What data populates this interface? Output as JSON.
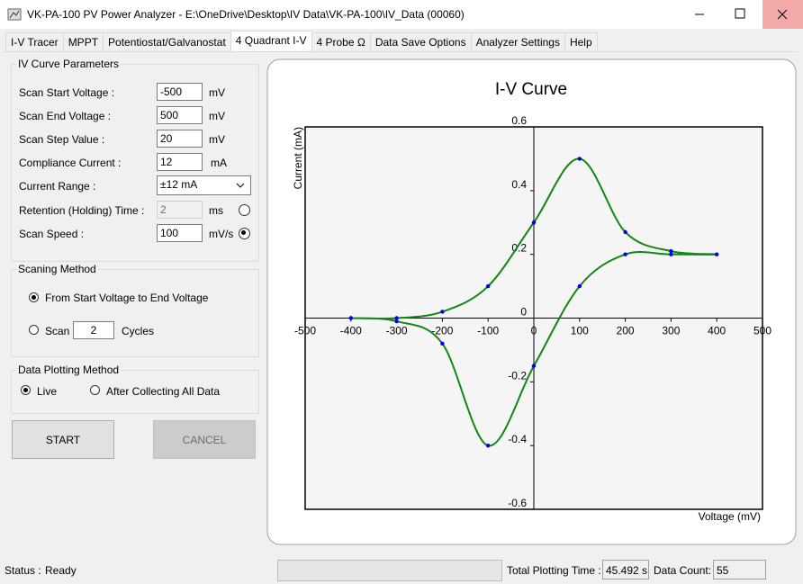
{
  "window": {
    "title": "VK-PA-100 PV Power Analyzer - E:\\OneDrive\\Desktop\\IV Data\\VK-PA-100\\IV_Data (00060)"
  },
  "tabs": [
    "I-V Tracer",
    "MPPT",
    "Potentiostat/Galvanostat",
    "4 Quadrant I-V",
    "4 Probe Ω",
    "Data Save Options",
    "Analyzer Settings",
    "Help"
  ],
  "iv_parameters": {
    "title": "IV Curve Parameters",
    "fields": [
      {
        "label": "Scan Start Voltage :",
        "value": "-500",
        "unit": "mV"
      },
      {
        "label": "Scan End Voltage :",
        "value": "500",
        "unit": "mV"
      },
      {
        "label": "Scan Step Value :",
        "value": "20",
        "unit": "mV"
      },
      {
        "label": "Compliance Current :",
        "value": "12",
        "unit": "mA"
      },
      {
        "label": "Current Range :",
        "value": "±12 mA"
      },
      {
        "label": "Retention (Holding) Time :",
        "value": "2",
        "unit": "ms"
      },
      {
        "label": "Scan Speed :",
        "value": "100",
        "unit": "mV/s"
      }
    ]
  },
  "scanning_method": {
    "title": "Scaning Method",
    "option": "From Start Voltage to End Voltage",
    "scan_label": "Scan",
    "cycles": "2",
    "cycles_unit": "Cycles"
  },
  "plotting_method": {
    "title": "Data Plotting Method",
    "options": [
      "Live",
      "After Collecting All Data"
    ]
  },
  "buttons": {
    "start": "START",
    "cancel": "CANCEL"
  },
  "status": {
    "label": "Status :",
    "value": "Ready",
    "time_label": "Total Plotting Time :",
    "time_value": "45.492 s",
    "count_label": "Data Count:",
    "count_value": "55"
  },
  "chart_data": {
    "type": "line",
    "title": "I-V Curve",
    "xlabel": "Voltage (mV)",
    "ylabel": "Current (mA)",
    "x": [
      -400,
      -300,
      -200,
      -100,
      0,
      100,
      200,
      300,
      400,
      300,
      200,
      100,
      0,
      -100,
      -200,
      -300,
      -400
    ],
    "values": [
      0,
      0,
      0.02,
      0.1,
      0.3,
      0.5,
      0.27,
      0.21,
      0.2,
      0.2,
      0.2,
      0.1,
      -0.15,
      -0.4,
      -0.08,
      -0.01,
      0
    ],
    "color": "#118811",
    "marker_color": "#0000ee",
    "xlim": [
      -500,
      500
    ],
    "xticks": [
      -500,
      -400,
      -300,
      -200,
      -100,
      0,
      100,
      200,
      300,
      400,
      500
    ],
    "ylim": [
      -0.6,
      0.6
    ],
    "yticks": [
      -0.6,
      -0.4,
      -0.2,
      0,
      0.2,
      0.4,
      0.6
    ]
  }
}
